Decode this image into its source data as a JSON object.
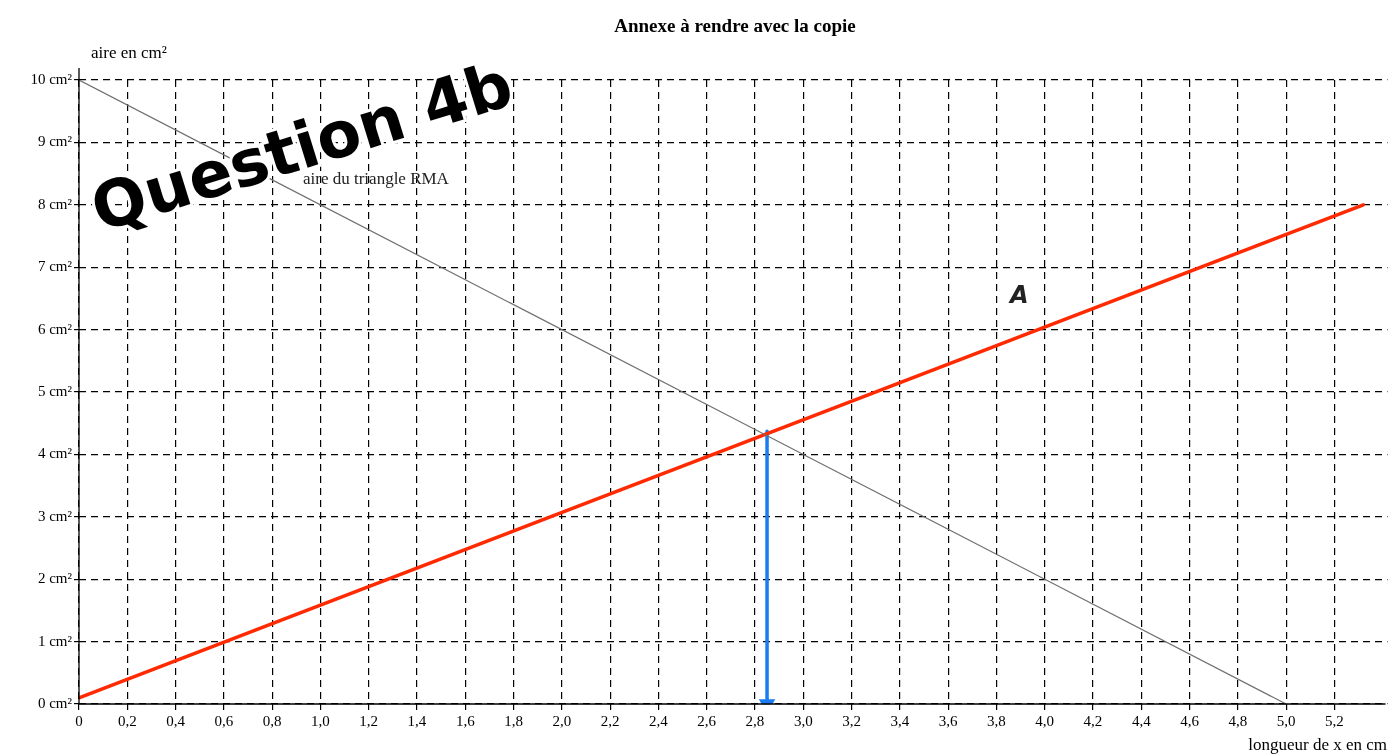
{
  "chart_data": {
    "type": "line",
    "title": "Annexe à rendre avec la copie",
    "xlabel": "longueur de x en cm",
    "ylabel": "aire en cm²",
    "xlim": [
      0,
      5.42
    ],
    "ylim": [
      0,
      10
    ],
    "xticks": [
      0,
      {
        "value": 0.2,
        "label": "0,2"
      },
      {
        "value": 0.4,
        "label": "0,4"
      },
      {
        "value": 0.6,
        "label": "0,6"
      },
      {
        "value": 0.8,
        "label": "0,8"
      },
      {
        "value": 1,
        "label": "1,0"
      },
      {
        "value": 1.2,
        "label": "1,2"
      },
      {
        "value": 1.4,
        "label": "1,4"
      },
      {
        "value": 1.6,
        "label": "1,6"
      },
      {
        "value": 1.8,
        "label": "1,8"
      },
      {
        "value": 2,
        "label": "2,0"
      },
      {
        "value": 2.2,
        "label": "2,2"
      },
      {
        "value": 2.4,
        "label": "2,4"
      },
      {
        "value": 2.6,
        "label": "2,6"
      },
      {
        "value": 2.8,
        "label": "2,8"
      },
      {
        "value": 3,
        "label": "3,0"
      },
      {
        "value": 3.2,
        "label": "3,2"
      },
      {
        "value": 3.4,
        "label": "3,4"
      },
      {
        "value": 3.6,
        "label": "3,6"
      },
      {
        "value": 3.8,
        "label": "3,8"
      },
      {
        "value": 4,
        "label": "4,0"
      },
      {
        "value": 4.2,
        "label": "4,2"
      },
      {
        "value": 4.4,
        "label": "4,4"
      },
      {
        "value": 4.6,
        "label": "4,6"
      },
      {
        "value": 4.8,
        "label": "4,8"
      },
      {
        "value": 5,
        "label": "5,0"
      },
      {
        "value": 5.2,
        "label": "5,2"
      }
    ],
    "yticks": [
      {
        "value": 0,
        "label": "0 cm²"
      },
      {
        "value": 1,
        "label": "1 cm²"
      },
      {
        "value": 2,
        "label": "2 cm²"
      },
      {
        "value": 3,
        "label": "3 cm²"
      },
      {
        "value": 4,
        "label": "4 cm²"
      },
      {
        "value": 5,
        "label": "5 cm²"
      },
      {
        "value": 6,
        "label": "6 cm²"
      },
      {
        "value": 7,
        "label": "7 cm²"
      },
      {
        "value": 8,
        "label": "8 cm²"
      },
      {
        "value": 9,
        "label": "9 cm²"
      },
      {
        "value": 10,
        "label": "10 cm²"
      }
    ],
    "grid": true,
    "legend": false,
    "marker": "none",
    "series": [
      {
        "color": "#707070",
        "x": [
          0,
          5
        ],
        "values": [
          10,
          0
        ]
      },
      {
        "color": "#ff2a00",
        "x": [
          0,
          5.32
        ],
        "values": [
          0.1,
          8.0
        ]
      },
      {
        "color": "#1a7cf0",
        "x": [
          2.85,
          2.85
        ],
        "values": [
          4.37,
          0
        ],
        "marker": "triangle"
      }
    ],
    "annotations": [
      "aire du triangle RMA",
      "A",
      "Question 4b"
    ]
  }
}
